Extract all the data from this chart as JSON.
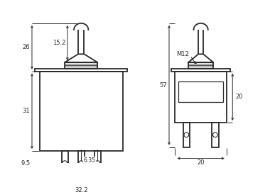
{
  "bg_color": "#ffffff",
  "line_color": "#2a2a2a",
  "figsize": [
    3.8,
    2.71
  ],
  "dpi": 100,
  "labels": {
    "dim_152": "15.2",
    "dim_26": "26",
    "dim_31": "31",
    "dim_95": "9.5",
    "dim_322": "32.2",
    "dim_635": "6.35",
    "dim_57": "57",
    "dim_20h": "20",
    "dim_20w": "20",
    "m12": "M12"
  }
}
